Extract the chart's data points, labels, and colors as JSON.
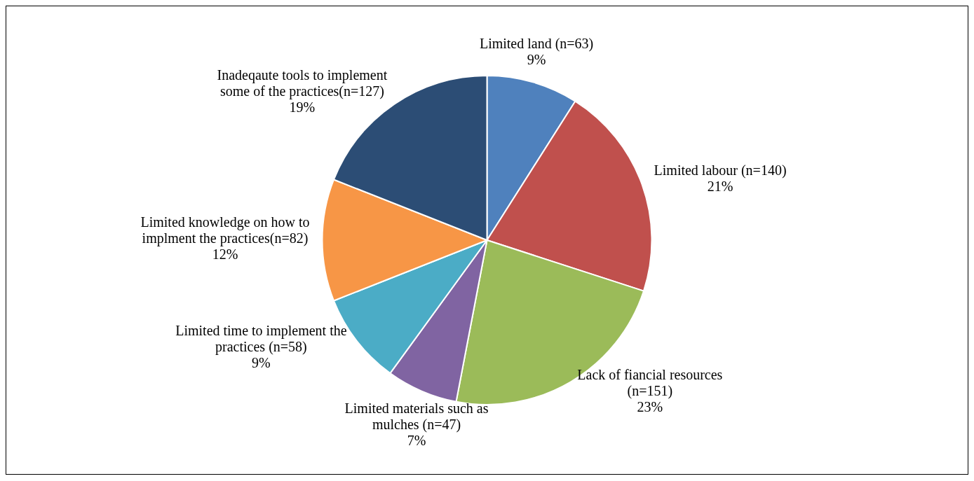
{
  "chart_data": {
    "type": "pie",
    "categories": [
      "Limited land (n=63)",
      "Limited labour (n=140)",
      "Lack of fiancial resources (n=151)",
      "Limited materials such as mulches (n=47)",
      "Limited time to implement the practices (n=58)",
      "Limited knowledge on how to implment the practices(n=82)",
      "Inadeqaute tools to implement some of the practices(n=127)"
    ],
    "values": [
      9,
      21,
      23,
      7,
      9,
      12,
      19
    ],
    "value_labels": [
      "9%",
      "21%",
      "23%",
      "7%",
      "9%",
      "12%",
      "19%"
    ],
    "colors": [
      "#4f81bd",
      "#c0504d",
      "#9bbb59",
      "#8064a2",
      "#4bacc6",
      "#f79646",
      "#2c4d75"
    ],
    "legend": false
  }
}
